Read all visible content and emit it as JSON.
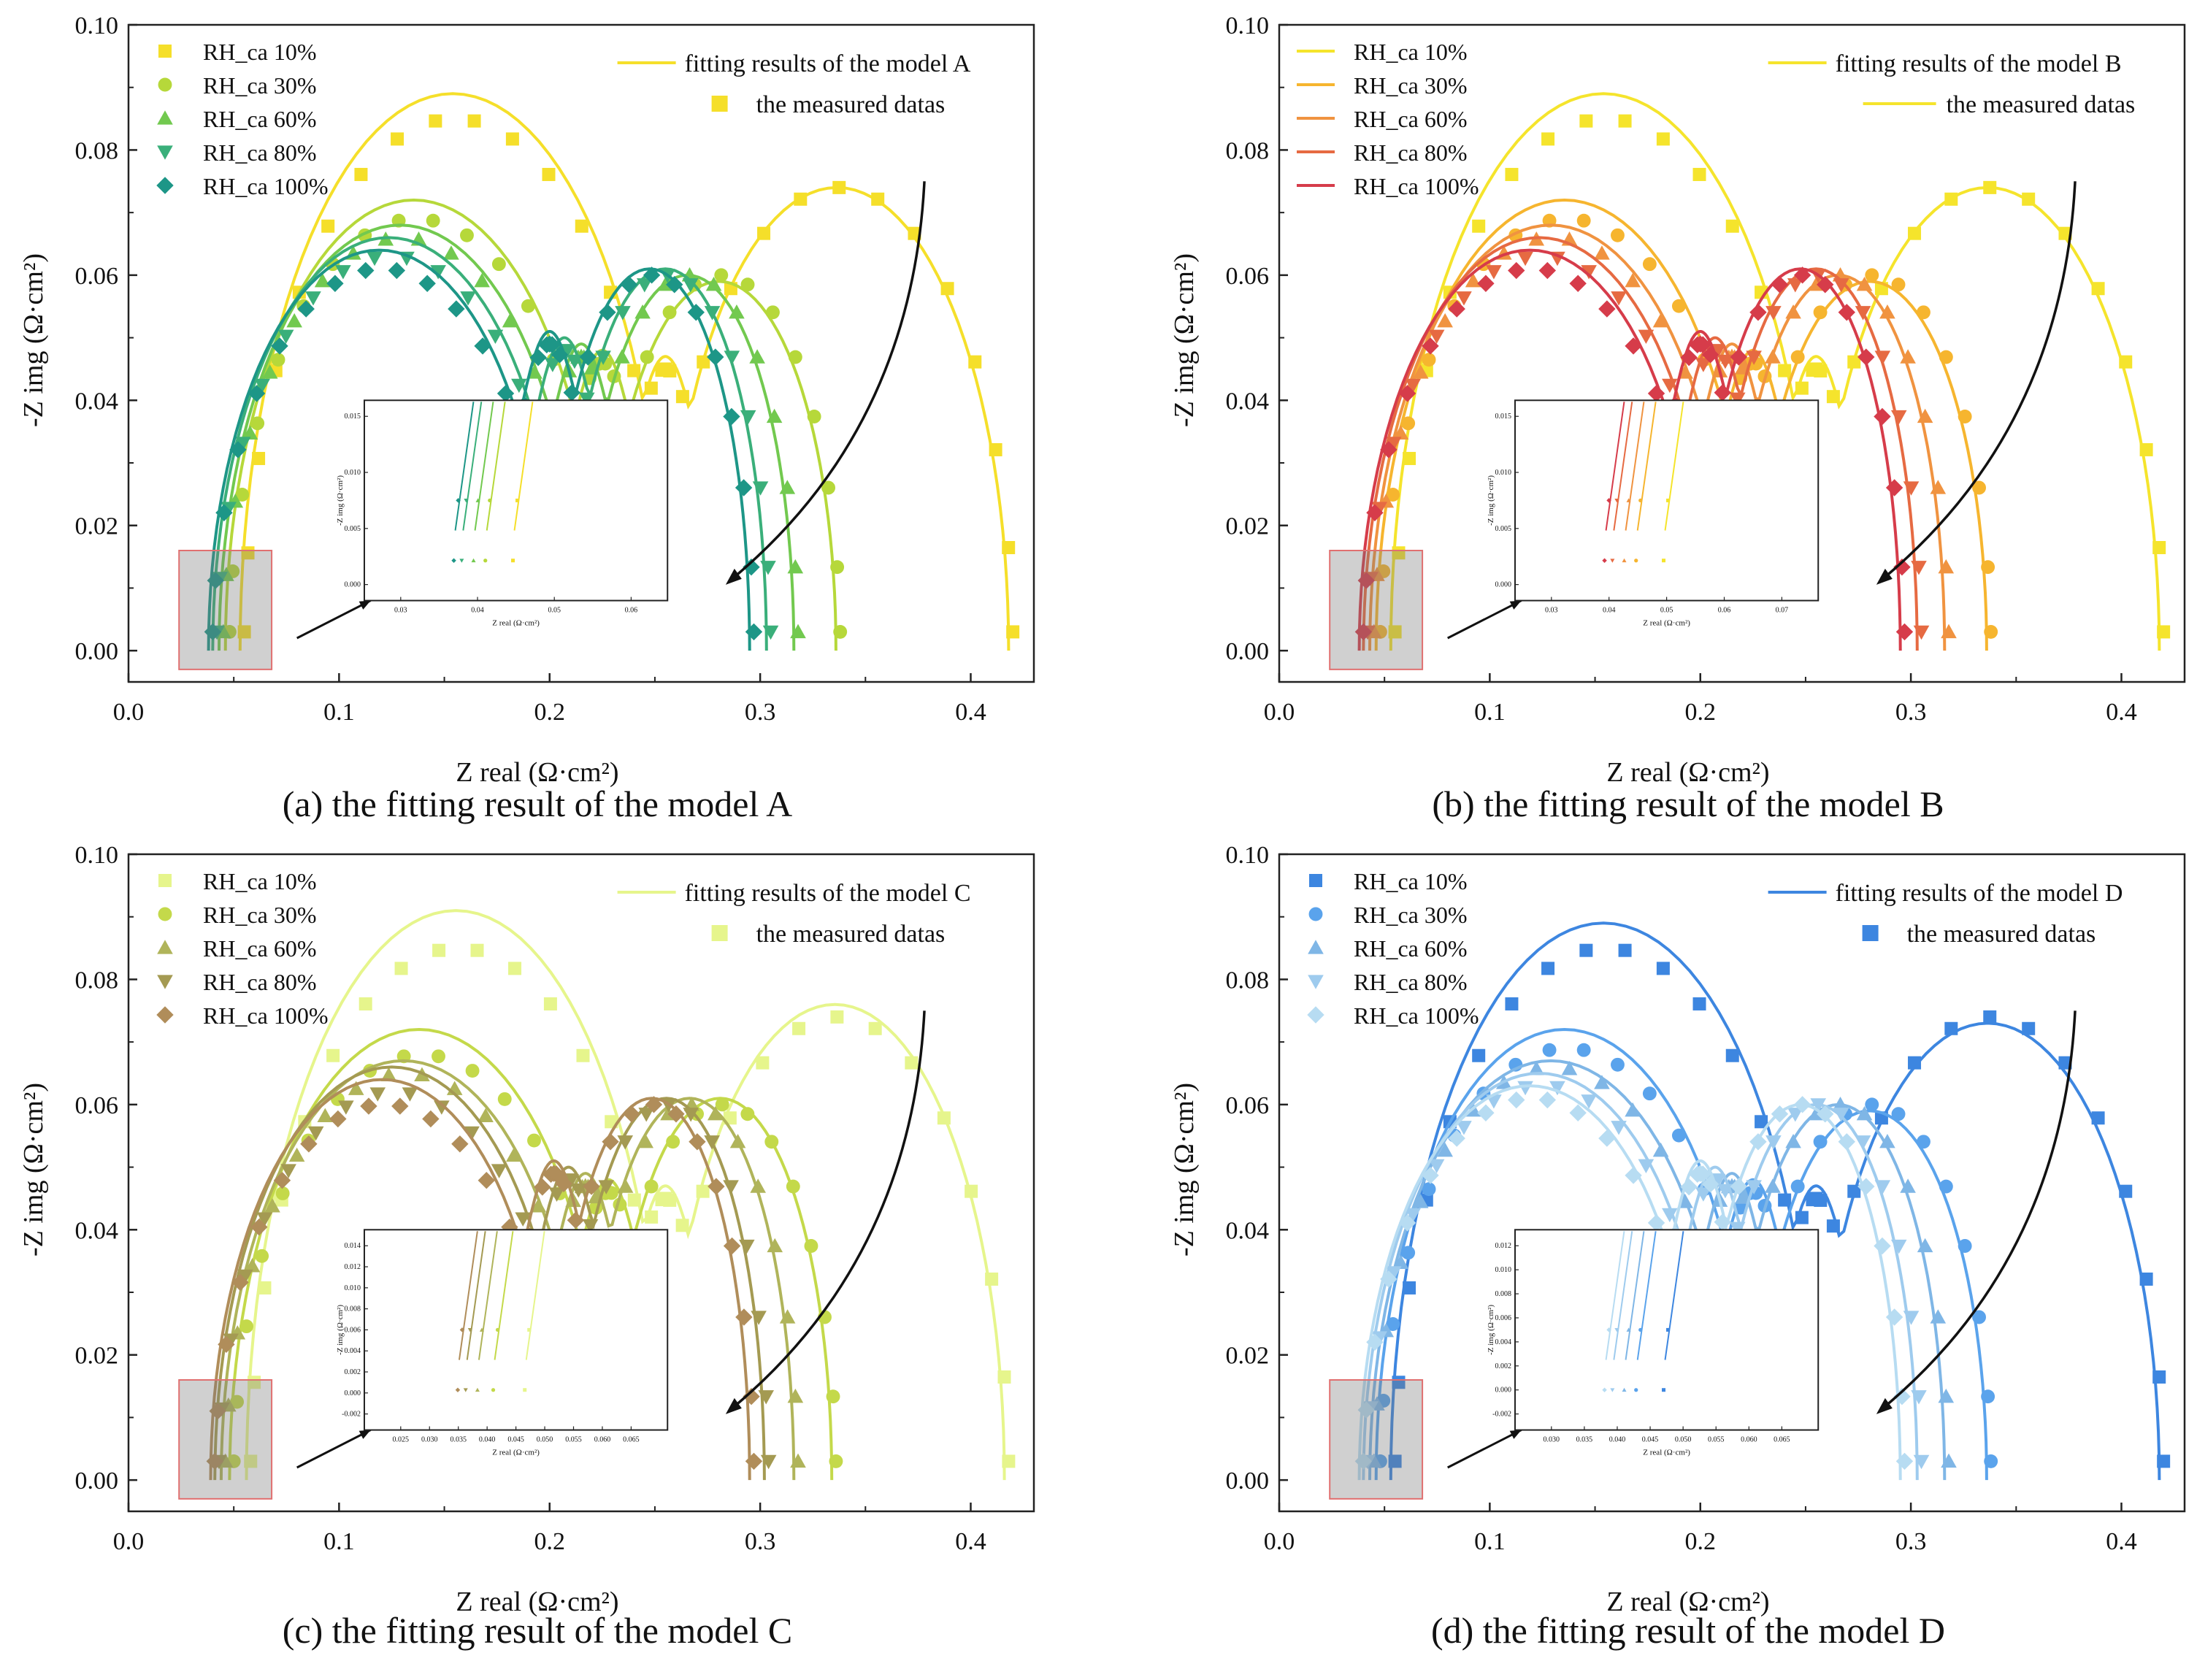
{
  "chart_data": [
    {
      "type": "scatter",
      "caption": "(a) the fitting result of the model A",
      "xlabel": "Z real (Ω·cm²)",
      "ylabel": "-Z img (Ω·cm²)",
      "xlim": [
        0.0,
        0.43
      ],
      "ylim": [
        -0.005,
        0.1
      ],
      "x_ticks": [
        "0.0",
        "0.1",
        "0.2",
        "0.3",
        "0.4"
      ],
      "y_ticks": [
        "0.00",
        "0.02",
        "0.04",
        "0.06",
        "0.08",
        "0.10"
      ],
      "fit_label": "fitting results of the model A",
      "measured_label": "the measured datas",
      "legend_markers": true,
      "colors": [
        "#f5df2a",
        "#b6d83a",
        "#72c94f",
        "#3aaf7a",
        "#1d9687"
      ],
      "series": [
        {
          "name": "RH_ca 10%",
          "marker": "square",
          "r0": 0.055,
          "r1": 0.255,
          "r2": 0.42,
          "h1": 0.085,
          "h2": 0.074,
          "fh1": 0.089,
          "fh2": 0.074
        },
        {
          "name": "RH_ca 30%",
          "marker": "circle",
          "r0": 0.048,
          "r1": 0.225,
          "r2": 0.338,
          "h1": 0.069,
          "h2": 0.06,
          "fh1": 0.072,
          "fh2": 0.059
        },
        {
          "name": "RH_ca 60%",
          "marker": "triangle-up",
          "r0": 0.045,
          "r1": 0.215,
          "r2": 0.318,
          "h1": 0.066,
          "h2": 0.06,
          "fh1": 0.068,
          "fh2": 0.06
        },
        {
          "name": "RH_ca 80%",
          "marker": "triangle-down",
          "r0": 0.042,
          "r1": 0.207,
          "r2": 0.305,
          "h1": 0.063,
          "h2": 0.06,
          "fh1": 0.066,
          "fh2": 0.061
        },
        {
          "name": "RH_ca 100%",
          "marker": "diamond",
          "r0": 0.04,
          "r1": 0.2,
          "r2": 0.297,
          "h1": 0.061,
          "h2": 0.06,
          "fh1": 0.064,
          "fh2": 0.061
        }
      ],
      "inset": {
        "xlabel": "Z real (Ω·cm²)",
        "ylabel": "-Z img (Ω·cm²)",
        "x_ticks": [
          "0.03",
          "0.04",
          "0.05",
          "0.06"
        ],
        "y_ticks": [
          "0.000",
          "0.005",
          "0.010",
          "0.015"
        ]
      }
    },
    {
      "type": "scatter",
      "caption": "(b) the fitting result of the model B",
      "xlabel": "Z real (Ω·cm²)",
      "ylabel": "-Z img (Ω·cm²)",
      "xlim": [
        0.0,
        0.43
      ],
      "ylim": [
        -0.005,
        0.1
      ],
      "x_ticks": [
        "0.0",
        "0.1",
        "0.2",
        "0.3",
        "0.4"
      ],
      "y_ticks": [
        "0.00",
        "0.02",
        "0.04",
        "0.06",
        "0.08",
        "0.10"
      ],
      "fit_label": "fitting results of the model B",
      "measured_label": "the measured datas",
      "legend_markers": false,
      "colors": [
        "#f5e42c",
        "#f6b52f",
        "#f09340",
        "#e66a42",
        "#d63c4a"
      ],
      "series": [
        {
          "name": "RH_ca 10%",
          "marker": "square",
          "r0": 0.055,
          "r1": 0.255,
          "r2": 0.42,
          "h1": 0.085,
          "h2": 0.074,
          "fh1": 0.089,
          "fh2": 0.074
        },
        {
          "name": "RH_ca 30%",
          "marker": "circle",
          "r0": 0.048,
          "r1": 0.225,
          "r2": 0.338,
          "h1": 0.069,
          "h2": 0.06,
          "fh1": 0.072,
          "fh2": 0.059
        },
        {
          "name": "RH_ca 60%",
          "marker": "triangle-up",
          "r0": 0.045,
          "r1": 0.215,
          "r2": 0.318,
          "h1": 0.066,
          "h2": 0.06,
          "fh1": 0.068,
          "fh2": 0.06
        },
        {
          "name": "RH_ca 80%",
          "marker": "triangle-down",
          "r0": 0.042,
          "r1": 0.207,
          "r2": 0.305,
          "h1": 0.063,
          "h2": 0.06,
          "fh1": 0.066,
          "fh2": 0.061
        },
        {
          "name": "RH_ca 100%",
          "marker": "diamond",
          "r0": 0.04,
          "r1": 0.2,
          "r2": 0.297,
          "h1": 0.061,
          "h2": 0.06,
          "fh1": 0.064,
          "fh2": 0.061
        }
      ],
      "inset": {
        "xlabel": "Z real (Ω·cm²)",
        "ylabel": "-Z img (Ω·cm²)",
        "x_ticks": [
          "0.03",
          "0.04",
          "0.05",
          "0.06",
          "0.07"
        ],
        "y_ticks": [
          "0.000",
          "0.005",
          "0.010",
          "0.015"
        ]
      }
    },
    {
      "type": "scatter",
      "caption": "(c) the fitting result of the model C",
      "xlabel": "Z real (Ω·cm²)",
      "ylabel": "-Z img (Ω·cm²)",
      "xlim": [
        0.0,
        0.43
      ],
      "ylim": [
        -0.005,
        0.1
      ],
      "x_ticks": [
        "0.0",
        "0.1",
        "0.2",
        "0.3",
        "0.4"
      ],
      "y_ticks": [
        "0.00",
        "0.02",
        "0.04",
        "0.06",
        "0.08",
        "0.10"
      ],
      "fit_label": "fitting results of the model C",
      "measured_label": "the measured datas",
      "legend_markers": true,
      "colors": [
        "#e6f58c",
        "#c4d94a",
        "#b0b45a",
        "#a49a52",
        "#b08d5a"
      ],
      "series": [
        {
          "name": "RH_ca 10%",
          "marker": "square",
          "r0": 0.058,
          "r1": 0.255,
          "r2": 0.418,
          "h1": 0.085,
          "h2": 0.074,
          "fh1": 0.091,
          "fh2": 0.076
        },
        {
          "name": "RH_ca 30%",
          "marker": "circle",
          "r0": 0.05,
          "r1": 0.228,
          "r2": 0.336,
          "h1": 0.068,
          "h2": 0.06,
          "fh1": 0.072,
          "fh2": 0.061
        },
        {
          "name": "RH_ca 60%",
          "marker": "triangle-up",
          "r0": 0.046,
          "r1": 0.217,
          "r2": 0.318,
          "h1": 0.065,
          "h2": 0.06,
          "fh1": 0.067,
          "fh2": 0.061
        },
        {
          "name": "RH_ca 80%",
          "marker": "triangle-down",
          "r0": 0.043,
          "r1": 0.209,
          "r2": 0.304,
          "h1": 0.062,
          "h2": 0.06,
          "fh1": 0.066,
          "fh2": 0.061
        },
        {
          "name": "RH_ca 100%",
          "marker": "diamond",
          "r0": 0.041,
          "r1": 0.202,
          "r2": 0.297,
          "h1": 0.06,
          "h2": 0.06,
          "fh1": 0.064,
          "fh2": 0.061
        }
      ],
      "inset": {
        "xlabel": "Z real (Ω·cm²)",
        "ylabel": "-Z img (Ω·cm²)",
        "x_ticks": [
          "0.025",
          "0.030",
          "0.035",
          "0.040",
          "0.045",
          "0.050",
          "0.055",
          "0.060",
          "0.065"
        ],
        "y_ticks": [
          "-0.002",
          "0.000",
          "0.002",
          "0.004",
          "0.006",
          "0.008",
          "0.010",
          "0.012",
          "0.014"
        ]
      }
    },
    {
      "type": "scatter",
      "caption": "(d) the fitting result of the model D",
      "xlabel": "Z real (Ω·cm²)",
      "ylabel": "-Z img (Ω·cm²)",
      "xlim": [
        0.0,
        0.43
      ],
      "ylim": [
        -0.005,
        0.1
      ],
      "x_ticks": [
        "0.0",
        "0.1",
        "0.2",
        "0.3",
        "0.4"
      ],
      "y_ticks": [
        "0.00",
        "0.02",
        "0.04",
        "0.06",
        "0.08",
        "0.10"
      ],
      "fit_label": "fitting results of the model D",
      "measured_label": "the measured datas",
      "legend_markers": true,
      "colors": [
        "#3d86e0",
        "#5aa3ec",
        "#7fb6e6",
        "#9ecbee",
        "#b7dcf2"
      ],
      "series": [
        {
          "name": "RH_ca 10%",
          "marker": "square",
          "r0": 0.055,
          "r1": 0.255,
          "r2": 0.42,
          "h1": 0.085,
          "h2": 0.074,
          "fh1": 0.089,
          "fh2": 0.073
        },
        {
          "name": "RH_ca 30%",
          "marker": "circle",
          "r0": 0.048,
          "r1": 0.225,
          "r2": 0.338,
          "h1": 0.069,
          "h2": 0.06,
          "fh1": 0.072,
          "fh2": 0.059
        },
        {
          "name": "RH_ca 60%",
          "marker": "triangle-up",
          "r0": 0.045,
          "r1": 0.215,
          "r2": 0.318,
          "h1": 0.066,
          "h2": 0.06,
          "fh1": 0.067,
          "fh2": 0.06
        },
        {
          "name": "RH_ca 80%",
          "marker": "triangle-down",
          "r0": 0.042,
          "r1": 0.207,
          "r2": 0.305,
          "h1": 0.063,
          "h2": 0.06,
          "fh1": 0.065,
          "fh2": 0.06
        },
        {
          "name": "RH_ca 100%",
          "marker": "diamond",
          "r0": 0.04,
          "r1": 0.2,
          "r2": 0.297,
          "h1": 0.061,
          "h2": 0.06,
          "fh1": 0.063,
          "fh2": 0.06
        }
      ],
      "inset": {
        "xlabel": "Z real (Ω·cm²)",
        "ylabel": "-Z img (Ω·cm²)",
        "x_ticks": [
          "0.030",
          "0.035",
          "0.040",
          "0.045",
          "0.050",
          "0.055",
          "0.060",
          "0.065"
        ],
        "y_ticks": [
          "-0.002",
          "0.000",
          "0.002",
          "0.004",
          "0.006",
          "0.008",
          "0.010",
          "0.012"
        ]
      }
    }
  ]
}
